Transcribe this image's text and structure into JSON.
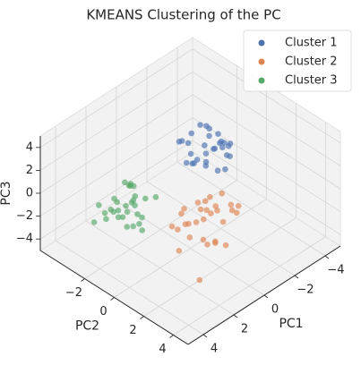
{
  "chart_data": {
    "type": "scatter3d",
    "title": "KMEANS Clustering of the PC",
    "x_label": "PC1",
    "y_label": "PC2",
    "z_label": "PC3",
    "xlim": [
      -5,
      5
    ],
    "ylim": [
      -5,
      5
    ],
    "zlim": [
      -5,
      5
    ],
    "xticks": [
      {
        "value": -4,
        "label": "−4"
      },
      {
        "value": -2,
        "label": "−2"
      },
      0,
      2,
      4
    ],
    "yticks": [
      {
        "value": -2,
        "label": "−2"
      },
      0,
      2,
      4
    ],
    "zticks": [
      {
        "value": -4,
        "label": "−4"
      },
      {
        "value": -2,
        "label": "−2"
      },
      0,
      2,
      4
    ],
    "grid": true,
    "legend": "upper right",
    "series": [
      {
        "name": "Cluster 1",
        "color": "#4c72b0",
        "x": [
          -2.1,
          -1.5,
          -2.8,
          -1.9,
          -2.4,
          -1.2,
          -2.6,
          -1.8,
          -3.0,
          -2.2,
          -1.6,
          -2.9,
          -1.0,
          -2.3,
          -1.7,
          -2.5,
          -3.2,
          -1.4,
          -2.0,
          -2.7,
          -1.9,
          -2.2,
          -1.3,
          -3.4,
          -2.4,
          -1.8,
          -2.6,
          -1.1,
          -2.0,
          -2.9
        ],
        "y": [
          -1.2,
          -0.5,
          -1.8,
          -0.9,
          -0.3,
          -1.5,
          -0.8,
          -2.0,
          -1.1,
          0.2,
          -1.4,
          -0.4,
          -0.9,
          -1.7,
          0.1,
          -1.3,
          -0.6,
          -2.2,
          -1.0,
          -1.5,
          0.4,
          -0.7,
          -1.9,
          -1.2,
          -2.4,
          -0.2,
          0.0,
          -1.1,
          -1.6,
          -0.9
        ],
        "z": [
          1.2,
          0.5,
          1.8,
          0.9,
          1.5,
          0.2,
          2.1,
          1.0,
          0.7,
          1.4,
          -0.1,
          1.1,
          0.8,
          2.4,
          0.4,
          1.6,
          0.9,
          1.3,
          0.0,
          1.9,
          0.6,
          1.2,
          1.7,
          0.3,
          1.0,
          2.0,
          0.8,
          1.4,
          -0.3,
          1.1
        ]
      },
      {
        "name": "Cluster 2",
        "color": "#dd8452",
        "x": [
          0.2,
          -0.8,
          0.9,
          -0.3,
          1.4,
          -1.2,
          0.5,
          -0.1,
          1.8,
          -0.6,
          0.7,
          -1.5,
          0.1,
          1.1,
          -0.9,
          0.4,
          2.2,
          -0.4,
          0.8,
          -1.1,
          0.0,
          1.6,
          -0.7,
          0.3,
          1.3,
          -0.2,
          -1.8,
          0.6,
          2.5,
          -0.5
        ],
        "y": [
          1.1,
          0.5,
          1.8,
          0.2,
          1.4,
          0.9,
          2.2,
          0.6,
          1.0,
          1.6,
          0.3,
          1.2,
          2.5,
          0.8,
          1.9,
          -0.2,
          1.5,
          1.3,
          0.7,
          2.0,
          0.4,
          2.8,
          1.1,
          1.7,
          0.1,
          0.9,
          1.4,
          2.3,
          3.2,
          0.5
        ],
        "z": [
          -1.4,
          -0.8,
          -2.0,
          -1.1,
          -1.7,
          -0.5,
          -2.3,
          -1.2,
          -1.0,
          -1.9,
          -0.7,
          -1.5,
          -2.6,
          -1.3,
          -0.9,
          -1.8,
          -2.1,
          -0.6,
          -1.6,
          -1.2,
          -2.4,
          -1.0,
          -1.4,
          -0.3,
          -1.9,
          -1.1,
          -1.7,
          -2.0,
          -3.0,
          -0.9
        ]
      },
      {
        "name": "Cluster 3",
        "color": "#55a868",
        "x": [
          2.1,
          1.5,
          2.8,
          1.9,
          2.4,
          1.2,
          2.6,
          1.8,
          3.0,
          2.2,
          1.6,
          2.9,
          1.0,
          2.3,
          1.7,
          2.5,
          3.3,
          1.4,
          2.0,
          2.7,
          1.9,
          2.2,
          1.3,
          3.5,
          2.4,
          1.8,
          2.6,
          1.1,
          2.0,
          3.1
        ],
        "y": [
          -2.2,
          -1.5,
          -2.9,
          -1.8,
          -2.4,
          -1.1,
          -2.7,
          -2.0,
          -3.1,
          -1.6,
          -2.5,
          -1.3,
          -2.8,
          -1.9,
          -3.4,
          -1.0,
          -2.3,
          -2.6,
          -1.4,
          -2.1,
          -3.0,
          -1.7,
          -2.4,
          -2.9,
          -0.8,
          -2.2,
          -1.9,
          -3.3,
          -1.2,
          -2.0
        ],
        "z": [
          -1.3,
          -0.6,
          -1.9,
          -1.1,
          -2.2,
          -0.4,
          -1.6,
          -0.9,
          -1.2,
          -2.5,
          -0.2,
          -1.7,
          -1.0,
          -1.4,
          -2.0,
          -0.7,
          -1.5,
          -0.3,
          -2.3,
          -1.1,
          -1.8,
          -0.5,
          -1.3,
          -2.1,
          -0.9,
          0.2,
          -1.6,
          -1.0,
          -2.7,
          -0.8
        ]
      }
    ]
  }
}
